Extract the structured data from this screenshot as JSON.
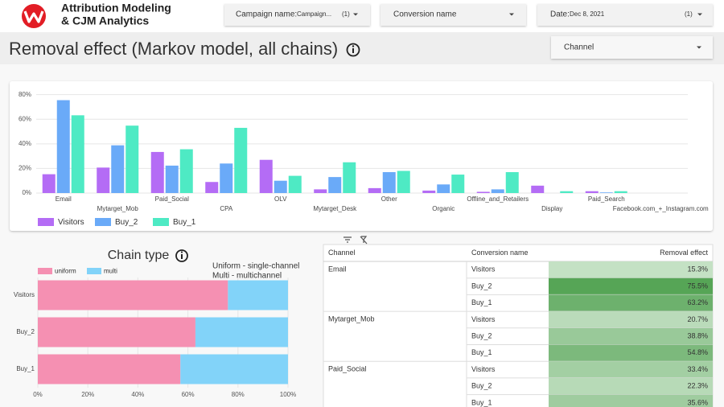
{
  "header": {
    "title_line1": "Attribution Modeling",
    "title_line2": "& CJM Analytics"
  },
  "filters": [
    {
      "label": "Campaign name:",
      "value": "Campaign...",
      "count": "(1)"
    },
    {
      "label": "Conversion name"
    },
    {
      "label": "Date:",
      "value": "Dec 8, 2021",
      "count": "(1)"
    },
    {
      "label": "Channel"
    }
  ],
  "page_title": "Removal effect (Markov model, all chains)",
  "chart_data": [
    {
      "type": "bar",
      "categories": [
        "Email",
        "Mytarget_Mob",
        "Paid_Social",
        "CPA",
        "OLV",
        "Mytarget_Desk",
        "Other",
        "Organic",
        "Offline_and_Retailers",
        "Display",
        "Paid_Search",
        "Facebook.com_+_Instagram.com"
      ],
      "series": [
        {
          "name": "Visitors",
          "color": "#b46cf5",
          "values": [
            15.3,
            20.7,
            33.4,
            9,
            27,
            3,
            4,
            2,
            1,
            6,
            1.5,
            0
          ]
        },
        {
          "name": "Buy_2",
          "color": "#6aaaf8",
          "values": [
            75.5,
            38.8,
            22.3,
            24,
            10,
            13,
            17,
            7,
            3,
            0,
            0.5,
            0
          ]
        },
        {
          "name": "Buy_1",
          "color": "#4eeac4",
          "values": [
            63.2,
            54.8,
            35.6,
            53,
            14,
            25,
            18,
            15,
            17,
            1.5,
            1.5,
            0
          ]
        }
      ],
      "ylim": [
        0,
        85
      ],
      "yticks": [
        {
          "value": 0,
          "label": "0%"
        },
        {
          "value": 20,
          "label": "20%"
        },
        {
          "value": 40,
          "label": "40%"
        },
        {
          "value": 60,
          "label": "60%"
        },
        {
          "value": 80,
          "label": "80%"
        }
      ],
      "grid": true
    },
    {
      "type": "stacked_bar",
      "title": "Chain type",
      "annotations": [
        "Uniform - single-channel",
        "Multi - multichannel"
      ],
      "categories": [
        "Visitors",
        "Buy_2",
        "Buy_1"
      ],
      "series": [
        {
          "name": "uniform",
          "color": "#f590b2",
          "values": [
            76,
            63,
            57
          ]
        },
        {
          "name": "multi",
          "color": "#82d3f9",
          "values": [
            24,
            37,
            43
          ]
        }
      ],
      "xlim": [
        0,
        100
      ],
      "xticks": [
        {
          "value": 0,
          "label": "0%"
        },
        {
          "value": 20,
          "label": "20%"
        },
        {
          "value": 40,
          "label": "40%"
        },
        {
          "value": 60,
          "label": "60%"
        },
        {
          "value": 80,
          "label": "80%"
        },
        {
          "value": 100,
          "label": "100%"
        }
      ],
      "grid": true
    }
  ],
  "table": {
    "columns": [
      "Channel",
      "Conversion name",
      "Removal effect"
    ],
    "groups": [
      {
        "channel": "Email",
        "rows": [
          {
            "conversion": "Visitors",
            "value": 15.3,
            "label": "15.3%"
          },
          {
            "conversion": "Buy_2",
            "value": 75.5,
            "label": "75.5%"
          },
          {
            "conversion": "Buy_1",
            "value": 63.2,
            "label": "63.2%"
          }
        ]
      },
      {
        "channel": "Mytarget_Mob",
        "rows": [
          {
            "conversion": "Visitors",
            "value": 20.7,
            "label": "20.7%"
          },
          {
            "conversion": "Buy_2",
            "value": 38.8,
            "label": "38.8%"
          },
          {
            "conversion": "Buy_1",
            "value": 54.8,
            "label": "54.8%"
          }
        ]
      },
      {
        "channel": "Paid_Social",
        "rows": [
          {
            "conversion": "Visitors",
            "value": 33.4,
            "label": "33.4%"
          },
          {
            "conversion": "Buy_2",
            "value": 22.3,
            "label": "22.3%"
          },
          {
            "conversion": "Buy_1",
            "value": 35.6,
            "label": "35.6%"
          }
        ]
      }
    ]
  }
}
